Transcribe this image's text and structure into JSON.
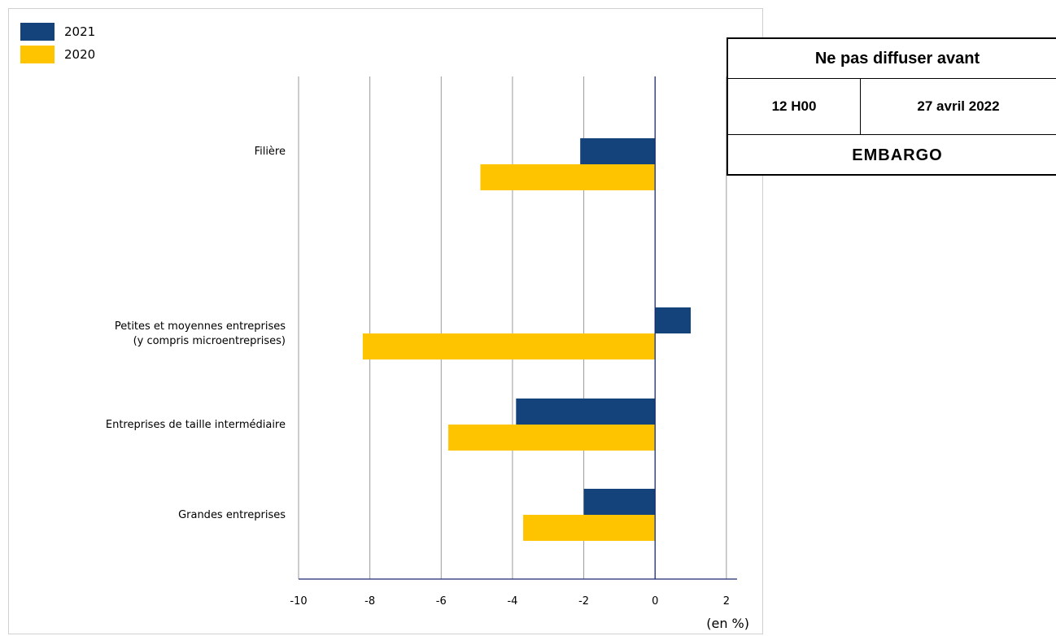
{
  "chart_data": {
    "type": "bar",
    "orientation": "horizontal",
    "categories": [
      "Filière",
      "Petites et moyennes entreprises\n(y compris microentreprises)",
      "Entreprises de taille intermédiaire",
      "Grandes entreprises"
    ],
    "series": [
      {
        "name": "2021",
        "color": "#14427a",
        "values": [
          -2.1,
          1.0,
          -3.9,
          -2.0
        ]
      },
      {
        "name": "2020",
        "color": "#ffc400",
        "values": [
          -4.9,
          -8.2,
          -5.8,
          -3.7
        ]
      }
    ],
    "xlim": [
      -10,
      2.3
    ],
    "xticks": [
      -10,
      -8,
      -6,
      -4,
      -2,
      0,
      2
    ],
    "xticklabels": [
      "-10",
      "-8",
      "-6",
      "-4",
      "-2",
      "0",
      "2"
    ],
    "unit_label": "(en %)",
    "grid": true,
    "legend_position": "top-left"
  },
  "embargo": {
    "title": "Ne pas diffuser avant",
    "time": "12 H00",
    "date": "27 avril 2022",
    "label": "EMBARGO"
  }
}
